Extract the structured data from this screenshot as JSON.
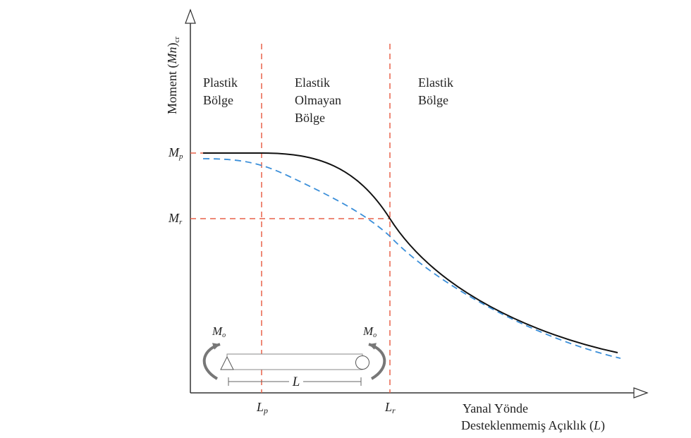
{
  "axes": {
    "y_label_text": "Moment (",
    "y_label_symbol": "Mn",
    "y_label_close": ")",
    "y_label_sub": "cr",
    "x_label_line1": "Yanal Yönde",
    "x_label_line2_text": "Desteklenmemiş Açıklık (",
    "x_label_line2_symbol": "L",
    "x_label_line2_close": ")"
  },
  "regions": {
    "plastic": [
      "Plastik",
      "Bölge"
    ],
    "inelastic": [
      "Elastik",
      "Olmayan",
      "Bölge"
    ],
    "elastic": [
      "Elastik",
      "Bölge"
    ]
  },
  "markers": {
    "y_mp": {
      "main": "M",
      "sub": "p"
    },
    "y_mr": {
      "main": "M",
      "sub": "r"
    },
    "x_lp": {
      "main": "L",
      "sub": "p"
    },
    "x_lr": {
      "main": "L",
      "sub": "r"
    }
  },
  "beam": {
    "moment_left": {
      "main": "M",
      "sub": "o"
    },
    "moment_right": {
      "main": "M",
      "sub": "o"
    },
    "span_label": "L"
  },
  "colors": {
    "axis": "#333333",
    "solid_curve": "#111111",
    "dashed_curve": "#3b8fd9",
    "guide_lines": "#e8624a",
    "beam": "#888888"
  }
}
